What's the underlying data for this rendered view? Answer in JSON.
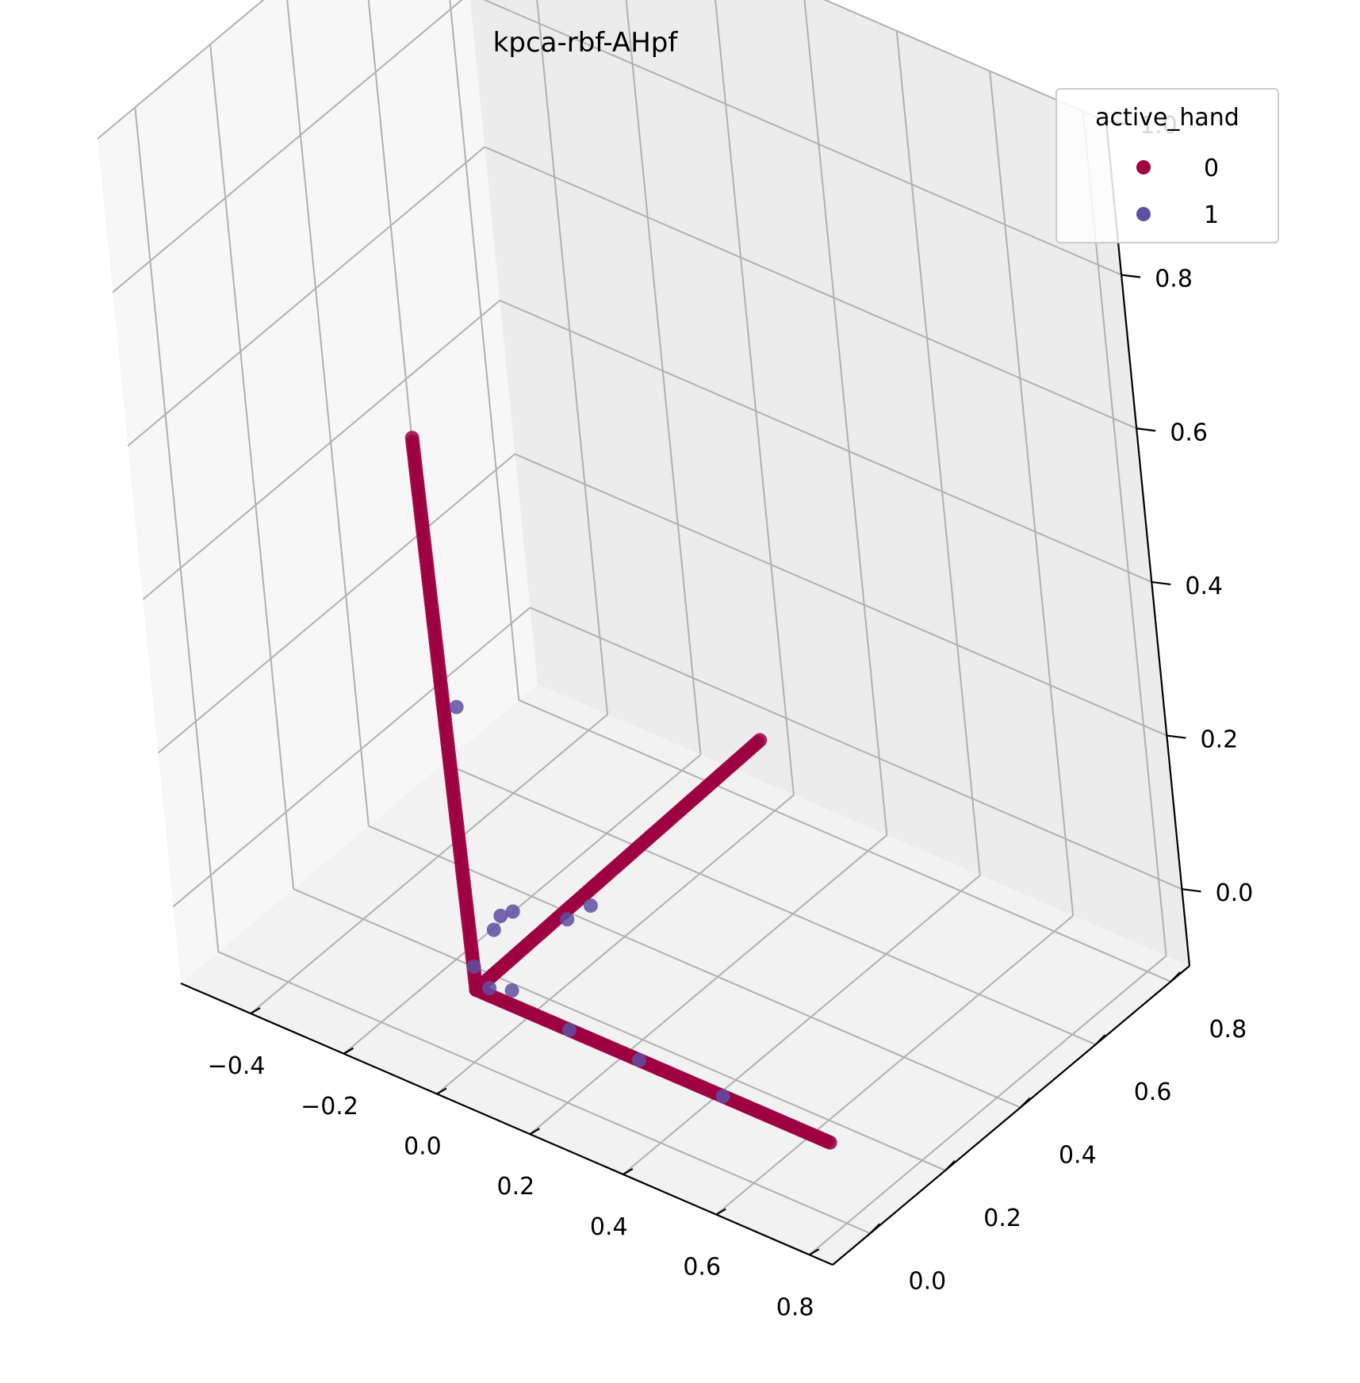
{
  "chart_data": {
    "type": "scatter",
    "projection": "3d",
    "title": "kpca-rbf-AHpf",
    "xlabel": "",
    "ylabel": "",
    "zlabel": "",
    "xlim": [
      -0.55,
      0.85
    ],
    "ylim": [
      -0.1,
      0.85
    ],
    "zlim": [
      -0.1,
      1.0
    ],
    "xticks": [
      -0.4,
      -0.2,
      0.0,
      0.2,
      0.4,
      0.6,
      0.8
    ],
    "xtick_labels": [
      "−0.4",
      "−0.2",
      "0.0",
      "0.2",
      "0.4",
      "0.6",
      "0.8"
    ],
    "yticks": [
      0.0,
      0.2,
      0.4,
      0.6,
      0.8
    ],
    "ytick_labels": [
      "0.0",
      "0.2",
      "0.4",
      "0.6",
      "0.8"
    ],
    "zticks": [
      0.0,
      0.2,
      0.4,
      0.6,
      0.8,
      1.0
    ],
    "ztick_labels": [
      "0.0",
      "0.2",
      "0.4",
      "0.6",
      "0.8",
      "1.0"
    ],
    "grid": true,
    "legend": {
      "title": "active_hand",
      "placement": "top-right",
      "entries": [
        {
          "label": "0",
          "color": "#9e0142"
        },
        {
          "label": "1",
          "color": "#5e4fa2"
        }
      ]
    },
    "series": [
      {
        "name": "0",
        "color": "#9e0142",
        "arms": [
          {
            "from": [
              0.02,
              0.0,
              0.0
            ],
            "to": [
              -0.02,
              0.02,
              0.7
            ],
            "count": 140
          },
          {
            "from": [
              0.02,
              0.0,
              0.0
            ],
            "to": [
              0.0,
              0.78,
              0.0
            ],
            "count": 120
          },
          {
            "from": [
              0.02,
              0.0,
              0.0
            ],
            "to": [
              0.78,
              0.0,
              0.0
            ],
            "count": 140
          }
        ]
      },
      {
        "name": "1",
        "color": "#5e4fa2",
        "points": [
          [
            0.0,
            0.08,
            0.04
          ],
          [
            0.0,
            0.1,
            0.05
          ],
          [
            0.01,
            0.12,
            0.05
          ],
          [
            0.02,
            0.02,
            0.36
          ],
          [
            0.03,
            0.23,
            0.0
          ],
          [
            0.04,
            0.28,
            0.0
          ],
          [
            0.1,
            0.0,
            0.02
          ],
          [
            0.22,
            0.0,
            0.0
          ],
          [
            0.37,
            0.0,
            0.0
          ],
          [
            0.55,
            0.0,
            0.0
          ],
          [
            0.02,
            0.0,
            0.03
          ],
          [
            0.05,
            0.0,
            0.01
          ]
        ]
      }
    ]
  }
}
